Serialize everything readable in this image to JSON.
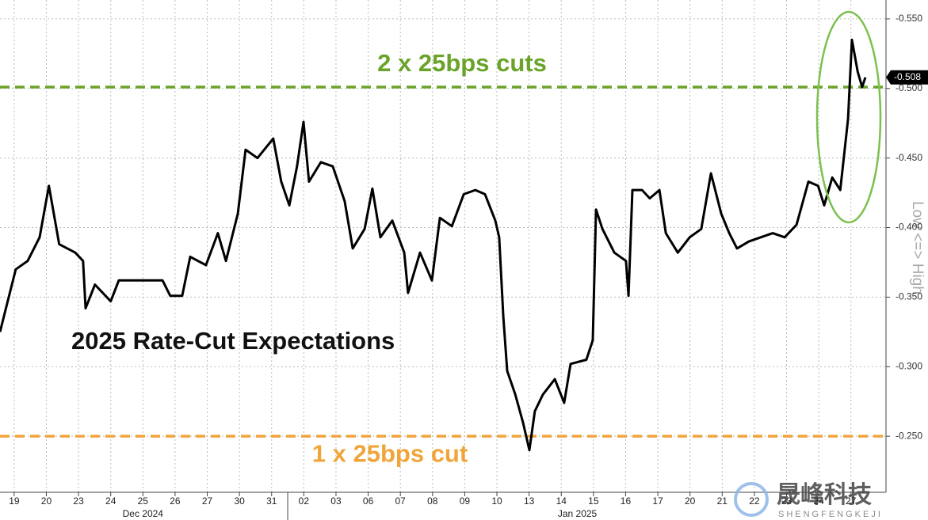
{
  "chart_data": {
    "type": "line",
    "title": "2025 Rate-Cut Expectations",
    "y_label": "Low <=> High",
    "series": [
      {
        "name": "2025 Rate-Cut Expectations",
        "color": "#000000",
        "x": [
          -0.44,
          -0.2,
          0.05,
          0.42,
          0.79,
          1.08,
          1.4,
          1.9,
          2.14,
          2.22,
          2.51,
          3.0,
          3.25,
          4.61,
          4.85,
          5.22,
          5.47,
          5.96,
          6.33,
          6.58,
          6.95,
          7.19,
          7.56,
          8.05,
          8.3,
          8.55,
          8.79,
          8.99,
          9.16,
          9.53,
          9.9,
          10.27,
          10.52,
          10.89,
          11.13,
          11.38,
          11.75,
          12.12,
          12.24,
          12.61,
          12.98,
          13.23,
          13.6,
          13.97,
          14.33,
          14.63,
          14.95,
          15.07,
          15.2,
          15.32,
          15.57,
          15.81,
          16.01,
          16.18,
          16.43,
          16.8,
          17.09,
          17.29,
          17.78,
          17.98,
          18.08,
          18.28,
          18.65,
          19.01,
          19.09,
          19.21,
          19.51,
          19.75,
          20.05,
          20.25,
          20.62,
          20.99,
          21.35,
          21.65,
          21.97,
          22.22,
          22.46,
          22.83,
          23.2,
          23.57,
          23.94,
          24.31,
          24.68,
          24.98,
          25.17,
          25.42,
          25.67,
          25.91,
          26.03,
          26.21,
          26.35,
          26.45
        ],
        "values": [
          -0.325,
          -0.347,
          -0.37,
          -0.376,
          -0.393,
          -0.43,
          -0.388,
          -0.382,
          -0.376,
          -0.342,
          -0.359,
          -0.347,
          -0.362,
          -0.362,
          -0.351,
          -0.351,
          -0.379,
          -0.373,
          -0.396,
          -0.376,
          -0.41,
          -0.456,
          -0.45,
          -0.464,
          -0.433,
          -0.416,
          -0.444,
          -0.476,
          -0.433,
          -0.447,
          -0.444,
          -0.419,
          -0.385,
          -0.399,
          -0.428,
          -0.393,
          -0.405,
          -0.382,
          -0.353,
          -0.382,
          -0.362,
          -0.407,
          -0.401,
          -0.424,
          -0.427,
          -0.424,
          -0.405,
          -0.393,
          -0.336,
          -0.297,
          -0.28,
          -0.26,
          -0.24,
          -0.268,
          -0.28,
          -0.291,
          -0.274,
          -0.302,
          -0.305,
          -0.319,
          -0.413,
          -0.399,
          -0.382,
          -0.376,
          -0.351,
          -0.427,
          -0.427,
          -0.421,
          -0.427,
          -0.396,
          -0.382,
          -0.393,
          -0.399,
          -0.439,
          -0.41,
          -0.396,
          -0.385,
          -0.39,
          -0.393,
          -0.396,
          -0.393,
          -0.402,
          -0.433,
          -0.43,
          -0.416,
          -0.436,
          -0.427,
          -0.478,
          -0.535,
          -0.512,
          -0.501,
          -0.508
        ]
      }
    ],
    "last_value": {
      "value": -0.508,
      "label": "-0.508"
    },
    "xlim": [
      -0.44,
      27.09
    ],
    "xticks": [
      {
        "value": 0,
        "label": "19"
      },
      {
        "value": 1,
        "label": "20"
      },
      {
        "value": 2,
        "label": "23"
      },
      {
        "value": 3,
        "label": "24"
      },
      {
        "value": 4,
        "label": "25"
      },
      {
        "value": 5,
        "label": "26"
      },
      {
        "value": 6,
        "label": "27"
      },
      {
        "value": 7,
        "label": "30"
      },
      {
        "value": 8,
        "label": "31"
      },
      {
        "value": 9,
        "label": "02"
      },
      {
        "value": 10,
        "label": "03"
      },
      {
        "value": 11,
        "label": "06"
      },
      {
        "value": 12,
        "label": "07"
      },
      {
        "value": 13,
        "label": "08"
      },
      {
        "value": 14,
        "label": "09"
      },
      {
        "value": 15,
        "label": "10"
      },
      {
        "value": 16,
        "label": "13"
      },
      {
        "value": 17,
        "label": "14"
      },
      {
        "value": 18,
        "label": "15"
      },
      {
        "value": 19,
        "label": "16"
      },
      {
        "value": 20,
        "label": "17"
      },
      {
        "value": 21,
        "label": "20"
      },
      {
        "value": 22,
        "label": "21"
      },
      {
        "value": 23,
        "label": "22"
      },
      {
        "value": 24,
        "label": "23"
      },
      {
        "value": 25,
        "label": "24"
      },
      {
        "value": 26,
        "label": "27"
      }
    ],
    "x_groups": [
      {
        "label": "Dec 2024",
        "from": 0,
        "to": 8
      },
      {
        "label": "Jan 2025",
        "from": 9,
        "to": 26
      }
    ],
    "ylim": [
      -0.2097,
      -0.5636
    ],
    "yticks": [
      {
        "value": -0.55,
        "label": "-0.550"
      },
      {
        "value": -0.5,
        "label": "-0.500"
      },
      {
        "value": -0.45,
        "label": "-0.450"
      },
      {
        "value": -0.4,
        "label": "-0.400"
      },
      {
        "value": -0.35,
        "label": "-0.350"
      },
      {
        "value": -0.3,
        "label": "-0.300"
      },
      {
        "value": -0.25,
        "label": "-0.250"
      }
    ],
    "grid": true,
    "reference_lines": [
      {
        "label": "2 x 25bps cuts",
        "value": -0.501,
        "color": "#6aa329"
      },
      {
        "label": "1 x 25bps cut",
        "value": -0.25,
        "color": "#f0a53a"
      }
    ],
    "watermark": {
      "title": "晟峰科技",
      "subtitle": "SHENGFENGKEJI"
    }
  }
}
